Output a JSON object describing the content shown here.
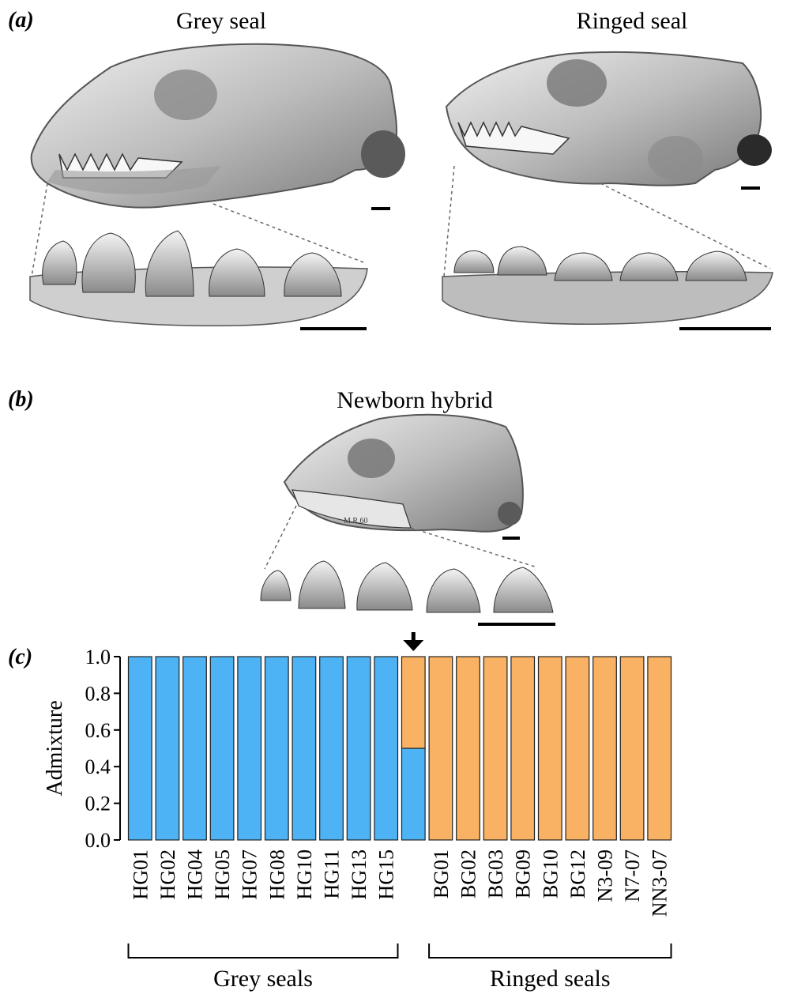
{
  "panels": {
    "a": {
      "label": "(a)",
      "left_title": "Grey seal",
      "right_title": "Ringed seal"
    },
    "b": {
      "label": "(b)",
      "title": "Newborn hybrid",
      "skull_inscription": "M.R.60"
    },
    "c": {
      "label": "(c)"
    }
  },
  "colors": {
    "grey_seal": "#4db3f5",
    "ringed_seal": "#f9b263",
    "bone": "#d9d9d9",
    "bone_dark": "#6b6b6b"
  },
  "icons": [
    "grey-seal-skull-image",
    "ringed-seal-skull-image",
    "hybrid-skull-image",
    "arrow-down-icon"
  ],
  "chart_data": {
    "type": "bar",
    "stacked": true,
    "ylabel": "Admixture",
    "ylim": [
      0,
      1
    ],
    "yticks": [
      "0.0",
      "0.2",
      "0.4",
      "0.6",
      "0.8",
      "1.0"
    ],
    "categories": [
      "HG01",
      "HG02",
      "HG04",
      "HG05",
      "HG07",
      "HG08",
      "HG10",
      "HG11",
      "HG13",
      "HG15",
      "",
      "BG01",
      "BG02",
      "BG03",
      "BG09",
      "BG10",
      "BG12",
      "N3-09",
      "N7-07",
      "NN3-07"
    ],
    "series": [
      {
        "values": [
          1,
          1,
          1,
          1,
          1,
          1,
          1,
          1,
          1,
          1,
          0.5,
          0,
          0,
          0,
          0,
          0,
          0,
          0,
          0,
          0
        ],
        "color": "#4db3f5"
      },
      {
        "values": [
          0,
          0,
          0,
          0,
          0,
          0,
          0,
          0,
          0,
          0,
          0.5,
          1,
          1,
          1,
          1,
          1,
          1,
          1,
          1,
          1
        ],
        "color": "#f9b263"
      }
    ],
    "hybrid_marker": "arrow-down",
    "groups": [
      {
        "label": "Grey seals"
      },
      {
        "label": "Ringed seals"
      }
    ]
  }
}
